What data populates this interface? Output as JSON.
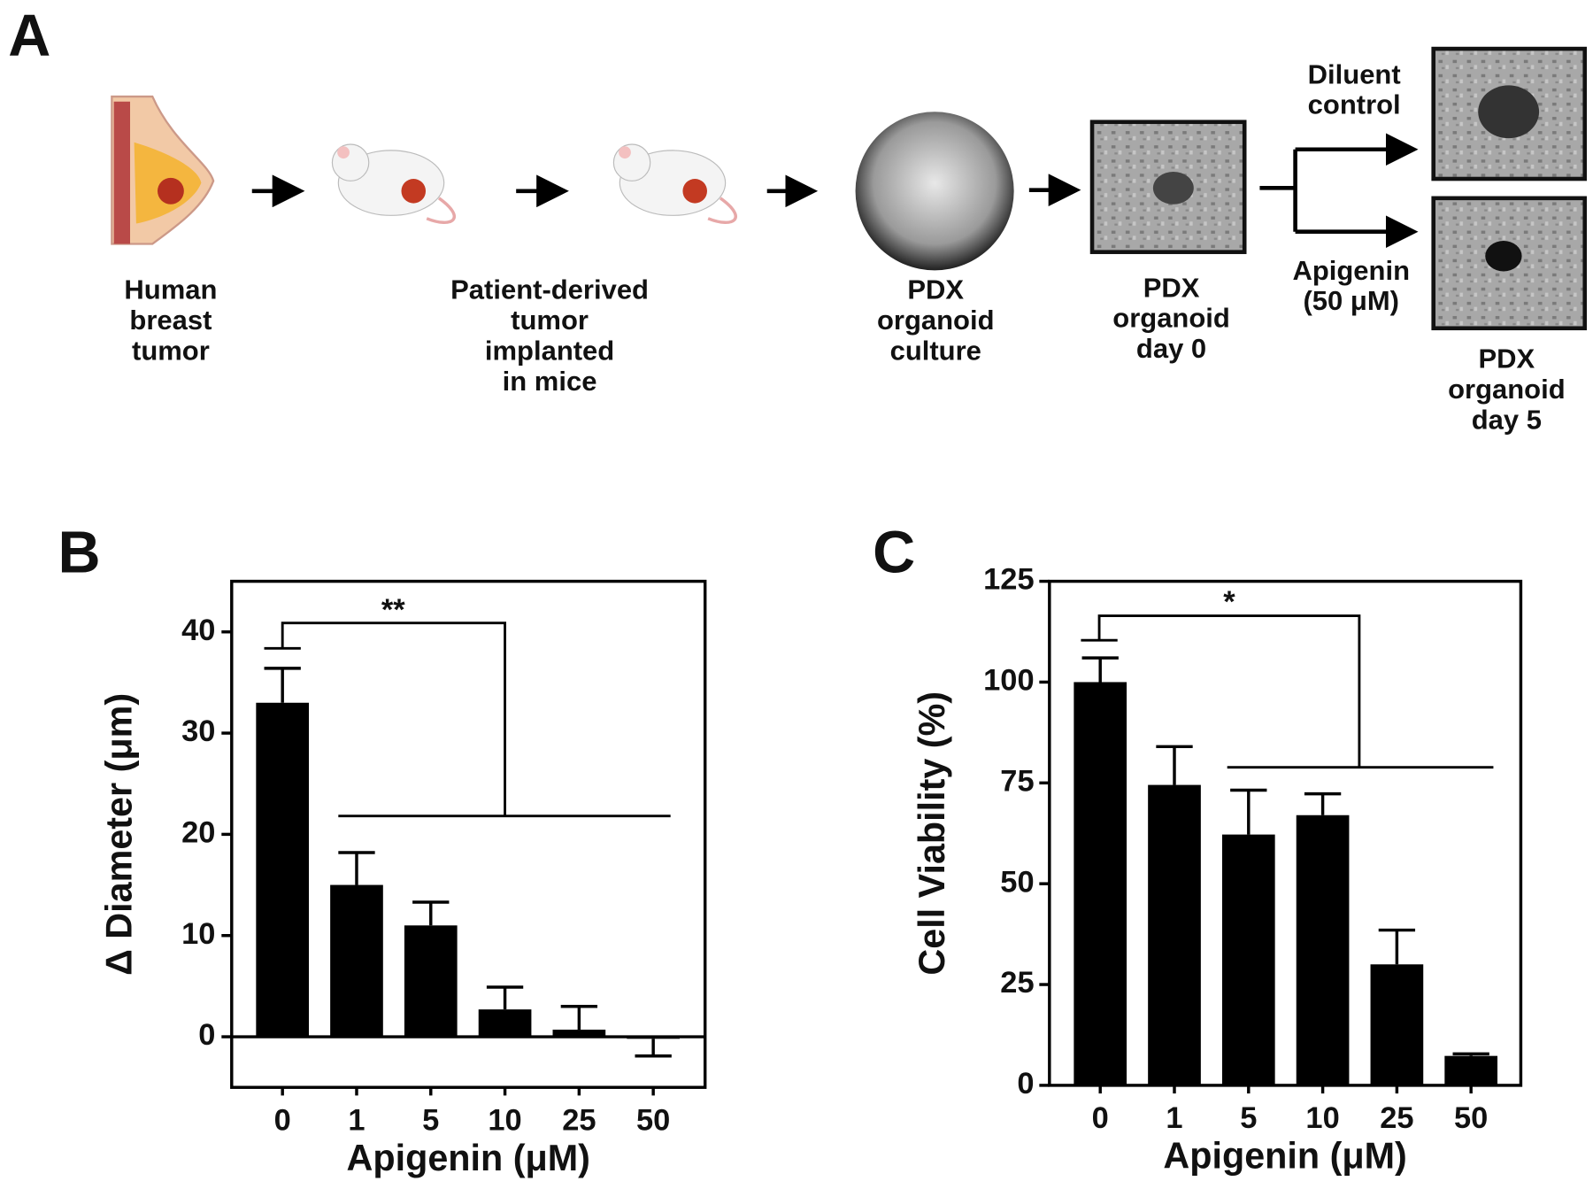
{
  "diagram": {
    "panel": "A",
    "labels": [
      {
        "lines": [
          "Human",
          "breast",
          "tumor"
        ]
      },
      {
        "lines": [
          "Patient-derived",
          "tumor",
          "implanted",
          "in mice"
        ]
      },
      {
        "lines": [
          "PDX",
          "organoid",
          "culture"
        ]
      },
      {
        "lines": [
          "PDX",
          "organoid",
          "day 0"
        ]
      },
      {
        "lines": [
          "Diluent",
          "control"
        ]
      },
      {
        "lines": [
          "Apigenin",
          "(50 μM)"
        ]
      },
      {
        "lines": [
          "PDX",
          "organoid",
          "day 5"
        ]
      }
    ]
  },
  "chart_data": [
    {
      "type": "bar",
      "panel": "B",
      "x_label": "Apigenin (μM)",
      "y_label": "Δ Diameter (μm)",
      "categories": [
        "0",
        "1",
        "5",
        "10",
        "25",
        "50"
      ],
      "values": [
        33,
        15,
        11,
        2.7,
        0.7,
        -0.2
      ],
      "errors": [
        3.4,
        3.2,
        2.3,
        2.2,
        2.3,
        1.7
      ],
      "color": "#000000",
      "ylim": [
        -5,
        45
      ],
      "yticks": [
        0,
        10,
        20,
        30,
        40
      ],
      "annotation": "**"
    },
    {
      "type": "bar",
      "panel": "C",
      "x_label": "Apigenin (μM)",
      "y_label": "Cell Viability (%)",
      "categories": [
        "0",
        "1",
        "5",
        "10",
        "25",
        "50"
      ],
      "values": [
        100,
        74.5,
        62.2,
        67,
        30,
        7.3
      ],
      "errors": [
        6,
        9.5,
        11,
        5.3,
        8.5,
        0.5
      ],
      "color": "#000000",
      "ylim": [
        0,
        125
      ],
      "yticks": [
        0,
        25,
        50,
        75,
        100,
        125
      ],
      "annotation": "*"
    }
  ]
}
